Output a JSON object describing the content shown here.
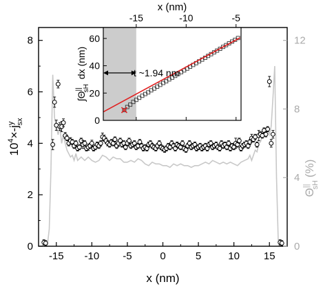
{
  "chart_data": [
    {
      "type": "scatter",
      "xlabel": "x (nm)",
      "ylabel_left": "10⁴×-jʸsx",
      "ylabel_right": "Θ‖sH (%)",
      "xlim": [
        -17.5,
        17.5
      ],
      "ylim_left": [
        0,
        8.5
      ],
      "ylim_right": [
        0,
        12.75
      ],
      "xticks": [
        -15,
        -10,
        -5,
        0,
        5,
        10,
        15
      ],
      "yticks_left": [
        0,
        2,
        4,
        6,
        8
      ],
      "yticks_right": [
        0,
        4,
        8,
        12
      ],
      "x_tick_labels": [
        "-15",
        "-10",
        "-5",
        "0",
        "5",
        "10",
        "15"
      ],
      "y_tick_labels_left": [
        "0",
        "2",
        "4",
        "6",
        "8"
      ],
      "y_tick_labels_right": [
        "0",
        "4",
        "8",
        "12"
      ],
      "colors": {
        "markers": "#000000",
        "theta_line": "#c8c8c8",
        "right_axis": "#aaaaaa"
      },
      "series": [
        {
          "marker": "open-circle-with-errorbars",
          "x": [
            -16.75,
            -16.5,
            -15.5,
            -15.25,
            -15,
            -14.75,
            -14.5,
            -14.25,
            -14,
            -13.75,
            -13.5,
            -13.25,
            -13,
            -12.75,
            -12.5,
            -12.25,
            -12,
            -11.75,
            -11.5,
            -11.25,
            -11,
            -10.75,
            -10.5,
            -10.25,
            -10,
            -9.75,
            -9.5,
            -9.25,
            -9,
            -8.75,
            -8.5,
            -8.25,
            -8,
            -7.75,
            -7.5,
            -7.25,
            -7,
            -6.75,
            -6.5,
            -6.25,
            -6,
            -5.75,
            -5.5,
            -5.25,
            -5,
            -4.75,
            -4.5,
            -4.25,
            -4,
            -3.75,
            -3.5,
            -3.25,
            -3,
            -2.75,
            -2.5,
            -2.25,
            -2,
            -1.75,
            -1.5,
            -1.25,
            -1,
            -0.75,
            -0.5,
            -0.25,
            0,
            0.25,
            0.5,
            0.75,
            1,
            1.25,
            1.5,
            1.75,
            2,
            2.25,
            2.5,
            2.75,
            3,
            3.25,
            3.5,
            3.75,
            4,
            4.25,
            4.5,
            4.75,
            5,
            5.25,
            5.5,
            5.75,
            6,
            6.25,
            6.5,
            6.75,
            7,
            7.25,
            7.5,
            7.75,
            8,
            8.25,
            8.5,
            8.75,
            9,
            9.25,
            9.5,
            9.75,
            10,
            10.25,
            10.5,
            10.75,
            11,
            11.25,
            11.5,
            11.75,
            12,
            12.25,
            12.5,
            12.75,
            13,
            13.25,
            13.5,
            13.75,
            14,
            14.25,
            14.5,
            14.75,
            15,
            15.25,
            15.5,
            16.5,
            16.75
          ],
          "y": [
            0.15,
            0.12,
            3.95,
            5.6,
            4.7,
            6.3,
            4.65,
            4.65,
            4.8,
            4.3,
            4.2,
            4.0,
            4.1,
            4.05,
            3.9,
            4.0,
            3.8,
            3.85,
            4.1,
            3.95,
            4.0,
            3.8,
            3.85,
            3.9,
            4.0,
            3.8,
            3.85,
            3.95,
            3.9,
            4.0,
            4.25,
            4.2,
            4.1,
            4.0,
            3.95,
            4.05,
            4.0,
            4.15,
            3.9,
            4.0,
            4.1,
            3.95,
            4.0,
            3.85,
            4.0,
            4.1,
            3.9,
            3.95,
            4.0,
            3.85,
            3.9,
            4.05,
            3.9,
            3.8,
            3.85,
            3.8,
            3.95,
            4.0,
            3.9,
            3.85,
            3.8,
            3.9,
            4.0,
            3.85,
            3.8,
            3.75,
            3.8,
            3.9,
            3.85,
            4.0,
            3.9,
            3.8,
            3.95,
            3.9,
            3.85,
            4.0,
            3.8,
            3.75,
            3.9,
            4.0,
            3.85,
            3.9,
            3.95,
            3.8,
            3.85,
            3.9,
            3.8,
            3.85,
            3.9,
            3.8,
            3.95,
            4.0,
            3.85,
            3.9,
            3.95,
            3.85,
            3.8,
            4.0,
            3.9,
            3.95,
            3.85,
            4.0,
            3.8,
            3.9,
            3.85,
            4.0,
            3.95,
            4.1,
            3.8,
            3.9,
            3.95,
            4.0,
            3.9,
            4.05,
            4.2,
            4.15,
            4.25,
            3.95,
            4.3,
            4.35,
            4.3,
            4.5,
            4.35,
            4.55,
            6.4,
            4.0,
            4.35,
            0.15,
            0.12
          ],
          "err": [
            0.1,
            0.1,
            0.2,
            0.2,
            0.2,
            0.15,
            0.15,
            0.2,
            0.15,
            0.12,
            0.1,
            0.1,
            0.12,
            0.1,
            0.1,
            0.1,
            0.1,
            0.1,
            0.1,
            0.15,
            0.1,
            0.1,
            0.12,
            0.1,
            0.12,
            0.1,
            0.1,
            0.1,
            0.1,
            0.1,
            0.15,
            0.12,
            0.1,
            0.1,
            0.1,
            0.1,
            0.1,
            0.1,
            0.1,
            0.12,
            0.1,
            0.1,
            0.1,
            0.1,
            0.1,
            0.1,
            0.1,
            0.1,
            0.1,
            0.1,
            0.1,
            0.1,
            0.1,
            0.1,
            0.1,
            0.1,
            0.1,
            0.1,
            0.1,
            0.1,
            0.1,
            0.1,
            0.1,
            0.1,
            0.1,
            0.1,
            0.1,
            0.1,
            0.1,
            0.1,
            0.1,
            0.1,
            0.1,
            0.1,
            0.1,
            0.1,
            0.1,
            0.1,
            0.1,
            0.1,
            0.1,
            0.1,
            0.1,
            0.1,
            0.1,
            0.1,
            0.1,
            0.1,
            0.1,
            0.1,
            0.1,
            0.1,
            0.1,
            0.1,
            0.1,
            0.1,
            0.1,
            0.1,
            0.1,
            0.1,
            0.1,
            0.1,
            0.1,
            0.1,
            0.1,
            0.2,
            0.1,
            0.1,
            0.1,
            0.1,
            0.1,
            0.1,
            0.1,
            0.1,
            0.15,
            0.1,
            0.1,
            0.1,
            0.2,
            0.1,
            0.1,
            0.1,
            0.1,
            0.1,
            0.2,
            0.15,
            0.15,
            0.1,
            0.1
          ]
        },
        {
          "marker": "line",
          "axis": "right",
          "x": [
            -16.5,
            -16.25,
            -16,
            -15.75,
            -15.5,
            -15.25,
            -15,
            -14.75,
            -14.5,
            -14.25,
            -14,
            -13.75,
            -13.5,
            -13.25,
            -13,
            -12.75,
            -12.5,
            -12.25,
            -12,
            -11.5,
            -11,
            -10.5,
            -10,
            -9.5,
            -9,
            -8.5,
            -8,
            -7.5,
            -7,
            -6.5,
            -6,
            -5.5,
            -5,
            -4.5,
            -4,
            -3.5,
            -3,
            -2.5,
            -2,
            -1.5,
            -1,
            -0.5,
            0,
            0.5,
            1,
            1.5,
            2,
            2.5,
            3,
            3.5,
            4,
            4.5,
            5,
            5.5,
            6,
            6.5,
            7,
            7.5,
            8,
            8.5,
            9,
            9.5,
            10,
            10.5,
            11,
            11.5,
            12,
            12.25,
            12.5,
            12.75,
            13,
            13.25,
            13.5,
            13.75,
            14,
            14.25,
            14.5,
            14.75,
            15,
            15.25,
            15.5,
            15.75,
            16,
            16.25,
            16.5
          ],
          "y": [
            0.0,
            0.1,
            1.0,
            4.5,
            10.0,
            7.5,
            7.0,
            6.5,
            7.0,
            6.0,
            6.5,
            6.0,
            5.6,
            5.4,
            5.2,
            5.3,
            5.0,
            5.4,
            5.0,
            5.2,
            5.0,
            5.2,
            5.0,
            4.9,
            5.0,
            5.3,
            5.2,
            5.0,
            5.2,
            5.1,
            5.1,
            4.9,
            4.9,
            5.0,
            4.9,
            5.1,
            5.0,
            4.8,
            4.7,
            4.9,
            4.8,
            4.8,
            4.7,
            4.7,
            4.6,
            4.8,
            4.7,
            4.8,
            4.7,
            4.7,
            4.6,
            4.7,
            4.7,
            4.8,
            4.9,
            4.8,
            5.0,
            4.9,
            4.8,
            4.9,
            4.8,
            4.9,
            4.8,
            4.7,
            4.9,
            5.0,
            5.1,
            5.3,
            5.0,
            5.3,
            5.6,
            5.5,
            6.0,
            6.1,
            6.4,
            6.7,
            6.5,
            6.8,
            6.5,
            7.0,
            8.7,
            10.5,
            4.0,
            0.2,
            0.0
          ]
        }
      ]
    },
    {
      "type": "scatter",
      "subplot": "inset",
      "xlabel": "x (nm)",
      "ylabel": "∫Θ‖sH dx (nm)",
      "xlim": [
        -18.3,
        -4.5
      ],
      "ylim": [
        0,
        68
      ],
      "xticks": [
        -15,
        -10,
        -5
      ],
      "yticks": [
        0,
        20,
        40,
        60
      ],
      "x_tick_labels": [
        "-15",
        "-10",
        "-5"
      ],
      "y_tick_labels": [
        "0",
        "20",
        "40",
        "60"
      ],
      "shaded_region_x": [
        -18.3,
        -15.0
      ],
      "annotation": "t ~1.94 nm",
      "annotation_arrow_x": [
        -18.3,
        -15.0
      ],
      "colors": {
        "markers": "#000000",
        "fit_line": "#e02020",
        "shade": "#cccccc"
      },
      "series": [
        {
          "marker": "open-square",
          "x": [
            -16.2,
            -15.9,
            -15.6,
            -15.3,
            -15.0,
            -14.7,
            -14.4,
            -14.1,
            -13.8,
            -13.5,
            -13.2,
            -12.9,
            -12.6,
            -12.3,
            -12.0,
            -11.7,
            -11.4,
            -11.1,
            -10.8,
            -10.5,
            -10.2,
            -9.9,
            -9.6,
            -9.3,
            -9.0,
            -8.7,
            -8.4,
            -8.1,
            -7.8,
            -7.5,
            -7.2,
            -6.9,
            -6.6,
            -6.3,
            -6.0,
            -5.7,
            -5.4,
            -5.1,
            -4.8
          ],
          "y": [
            7.5,
            9.8,
            11.5,
            13.5,
            15.0,
            16.5,
            18.0,
            19.3,
            20.5,
            22.0,
            23.3,
            24.7,
            26.0,
            27.4,
            28.6,
            30.0,
            31.3,
            32.6,
            34.0,
            35.3,
            36.6,
            37.9,
            39.3,
            40.6,
            41.9,
            43.2,
            44.5,
            45.8,
            47.2,
            48.5,
            49.8,
            51.1,
            52.4,
            53.8,
            55.1,
            56.4,
            57.7,
            59.0,
            60.3
          ]
        },
        {
          "marker": "fit-line",
          "x": [
            -18.3,
            -4.6
          ],
          "y": [
            6.2,
            60.5
          ]
        }
      ]
    }
  ]
}
